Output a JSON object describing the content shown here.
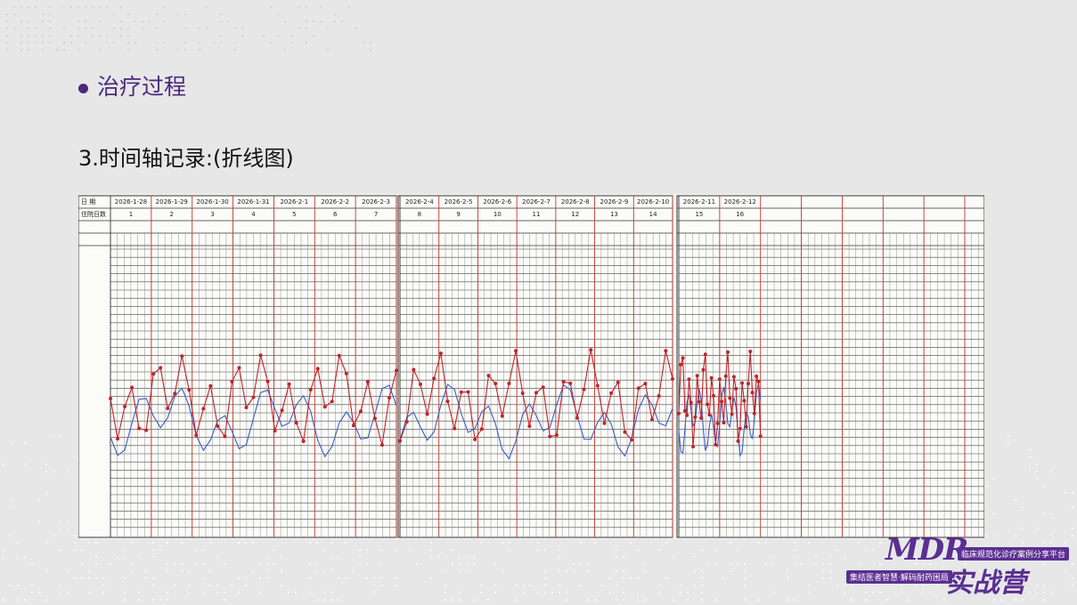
{
  "header": {
    "bullet": "治疗过程",
    "subtitle": "3.时间轴记录:(折线图)"
  },
  "chart_photo": {
    "row_labels": [
      "日 期",
      "住院日数"
    ],
    "dates": [
      "2026-1-28",
      "2026-1-29",
      "2026-1-30",
      "2026-1-31",
      "2026-2-1",
      "2026-2-2",
      "2026-2-3",
      "2026-2-4",
      "2026-2-5",
      "2026-2-6",
      "2026-2-7",
      "2026-2-8",
      "2026-2-9",
      "2026-2-10",
      "2026-2-11",
      "2026-2-12"
    ],
    "hospital_days": [
      "1",
      "2",
      "3",
      "4",
      "5",
      "6",
      "7",
      "8",
      "9",
      "10",
      "11",
      "12",
      "13",
      "14",
      "15",
      "16"
    ]
  },
  "logo": {
    "brand": "MDR",
    "tagline": "临床规范化诊疗案例分享平台",
    "slogan": "集结医者智慧·解码耐药困局",
    "name": "实战营"
  }
}
